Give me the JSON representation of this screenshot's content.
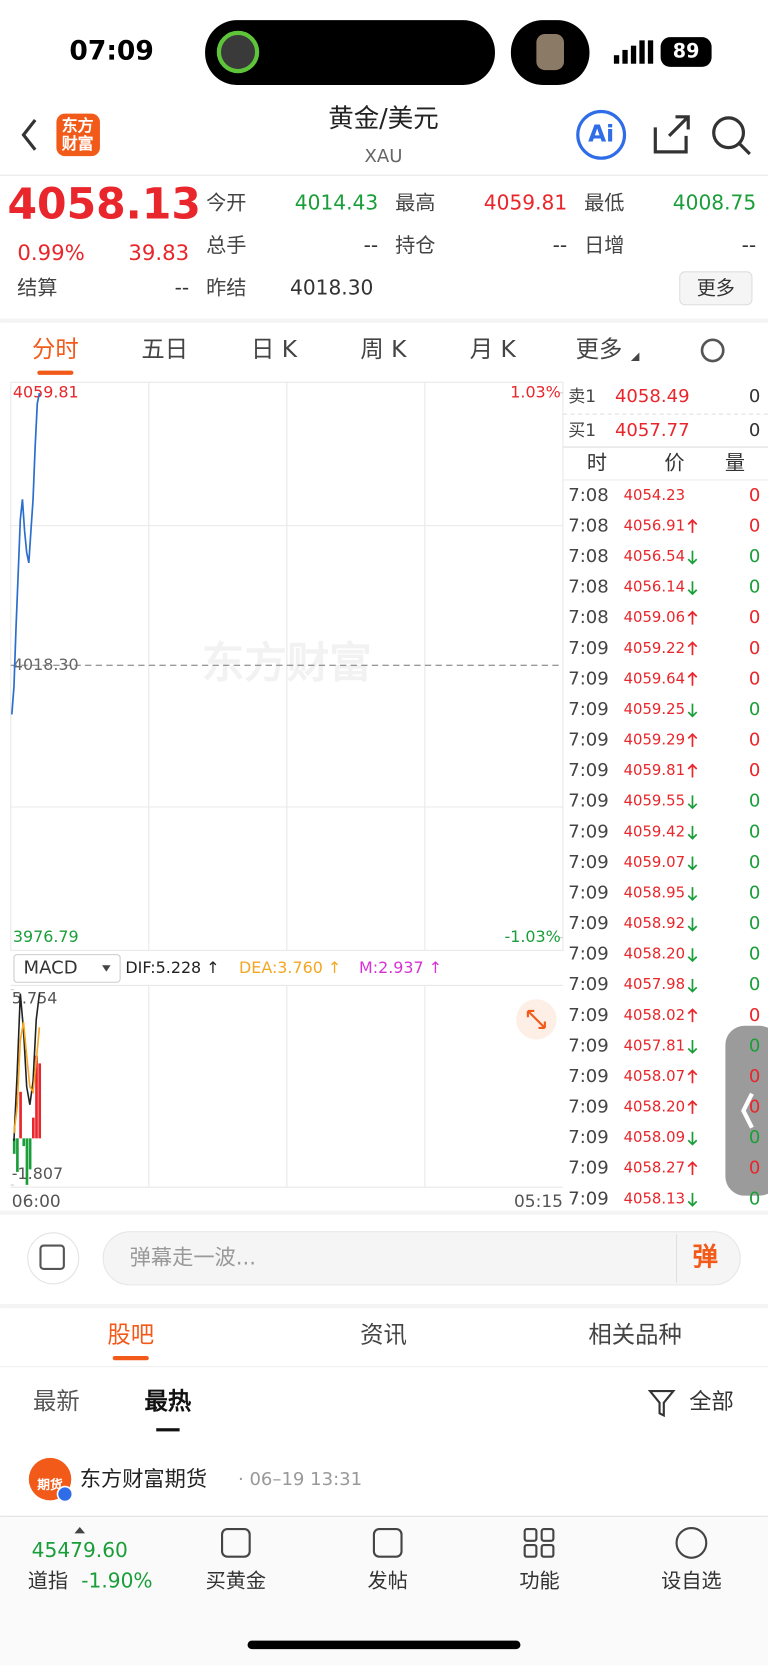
{
  "status": {
    "time": "07:09",
    "battery": "89"
  },
  "header": {
    "logo": [
      "东方",
      "财富"
    ],
    "title": "黄金/美元",
    "subtitle": "XAU",
    "ai": "Ai"
  },
  "quote": {
    "price": "4058.13",
    "change_pct": "0.99%",
    "change": "39.83",
    "fields": [
      {
        "label": "今开",
        "value": "4014.43",
        "color": "#1a9e3a"
      },
      {
        "label": "最高",
        "value": "4059.81",
        "color": "#e8262b"
      },
      {
        "label": "最低",
        "value": "4008.75",
        "color": "#1a9e3a"
      },
      {
        "label": "总手",
        "value": "--",
        "color": "#333333"
      },
      {
        "label": "持仓",
        "value": "--",
        "color": "#333333"
      },
      {
        "label": "日增",
        "value": "--",
        "color": "#333333"
      },
      {
        "label": "结算",
        "value": "--",
        "color": "#333333"
      },
      {
        "label": "昨结",
        "value": "4018.30",
        "color": "#333333"
      }
    ],
    "more": "更多"
  },
  "tabs": {
    "items": [
      "分时",
      "五日",
      "日 K",
      "周 K",
      "月 K",
      "更多"
    ],
    "active": 0
  },
  "chart_data": [
    {
      "type": "line",
      "watermark": "东方财富",
      "color": "#2b6fce",
      "values": [
        4010.8,
        4015.0,
        4024.2,
        4032.3,
        4040.5,
        4043.6,
        4038.8,
        4035.5,
        4033.9,
        4038.8,
        4043.6,
        4051.7,
        4058.2,
        4059.8
      ],
      "ylim": [
        3976.79,
        4059.81
      ],
      "yticks": [
        3976.79,
        {
          "value": 4018.3,
          "label": "4018.30"
        },
        4059.81
      ],
      "y2lim": [
        -1.03,
        1.03
      ],
      "y2ticks": [
        {
          "value": -1.03,
          "label": "-1.03%"
        },
        {
          "value": 1.03,
          "label": "1.03%"
        }
      ],
      "x_labels": [
        "06:00",
        "05:15"
      ]
    },
    {
      "type": "macd",
      "selector": "MACD",
      "ylim": [
        -1.807,
        5.754
      ],
      "yticks": [
        5.754,
        -1.807
      ],
      "series": [
        {
          "name": "DIF:5.228 ↑",
          "color": "#222222",
          "values": [
            -0.1,
            2.5,
            5.6,
            4.2,
            2.0,
            1.3,
            2.2,
            4.6,
            5.6
          ]
        },
        {
          "name": "DEA:3.760 ↑",
          "color": "#f5a623",
          "values": [
            0.2,
            1.2,
            3.8,
            4.5,
            3.2,
            2.0,
            1.8,
            3.0,
            4.3
          ]
        }
      ],
      "bars": {
        "name": "M:2.937 ↑",
        "color": "#d633d6",
        "up_color": "#e8262b",
        "down_color": "#1a9e3a",
        "values": [
          -0.6,
          -1.3,
          1.8,
          -0.3,
          -1.8,
          -1.2,
          0.8,
          3.2,
          2.9
        ]
      }
    }
  ],
  "order_book": {
    "ask": [
      "卖1",
      "4058.49",
      "0"
    ],
    "bid": [
      "买1",
      "4057.77",
      "0"
    ],
    "header": [
      "时",
      "价",
      "量"
    ],
    "trades": [
      {
        "time": "7:08",
        "price": "4054.23",
        "vol": "0",
        "dir": null
      },
      {
        "time": "7:08",
        "price": "4056.91",
        "vol": "0",
        "dir": "up"
      },
      {
        "time": "7:08",
        "price": "4056.54",
        "vol": "0",
        "dir": "down"
      },
      {
        "time": "7:08",
        "price": "4056.14",
        "vol": "0",
        "dir": "down"
      },
      {
        "time": "7:08",
        "price": "4059.06",
        "vol": "0",
        "dir": "up"
      },
      {
        "time": "7:09",
        "price": "4059.22",
        "vol": "0",
        "dir": "up"
      },
      {
        "time": "7:09",
        "price": "4059.64",
        "vol": "0",
        "dir": "up"
      },
      {
        "time": "7:09",
        "price": "4059.25",
        "vol": "0",
        "dir": "down"
      },
      {
        "time": "7:09",
        "price": "4059.29",
        "vol": "0",
        "dir": "up"
      },
      {
        "time": "7:09",
        "price": "4059.81",
        "vol": "0",
        "dir": "up"
      },
      {
        "time": "7:09",
        "price": "4059.55",
        "vol": "0",
        "dir": "down"
      },
      {
        "time": "7:09",
        "price": "4059.42",
        "vol": "0",
        "dir": "down"
      },
      {
        "time": "7:09",
        "price": "4059.07",
        "vol": "0",
        "dir": "down"
      },
      {
        "time": "7:09",
        "price": "4058.95",
        "vol": "0",
        "dir": "down"
      },
      {
        "time": "7:09",
        "price": "4058.92",
        "vol": "0",
        "dir": "down"
      },
      {
        "time": "7:09",
        "price": "4058.20",
        "vol": "0",
        "dir": "down"
      },
      {
        "time": "7:09",
        "price": "4057.98",
        "vol": "0",
        "dir": "down"
      },
      {
        "time": "7:09",
        "price": "4058.02",
        "vol": "0",
        "dir": "up"
      },
      {
        "time": "7:09",
        "price": "4057.81",
        "vol": "0",
        "dir": "down"
      },
      {
        "time": "7:09",
        "price": "4058.07",
        "vol": "0",
        "dir": "up"
      },
      {
        "time": "7:09",
        "price": "4058.20",
        "vol": "0",
        "dir": "up"
      },
      {
        "time": "7:09",
        "price": "4058.09",
        "vol": "0",
        "dir": "down"
      },
      {
        "time": "7:09",
        "price": "4058.27",
        "vol": "0",
        "dir": "up"
      },
      {
        "time": "7:09",
        "price": "4058.13",
        "vol": "0",
        "dir": "down"
      }
    ]
  },
  "comment": {
    "placeholder": "弹幕走一波...",
    "button": "弹"
  },
  "sections": {
    "items": [
      "股吧",
      "资讯",
      "相关品种"
    ],
    "active": 0
  },
  "filters": {
    "items": [
      "最新",
      "最热"
    ],
    "active": 1,
    "all": "全部"
  },
  "post": {
    "avatar": "期货",
    "author": "东方财富期货",
    "time": "· 06–19 13:31"
  },
  "bottom_bar": {
    "index_value": "45479.60",
    "index_name": "道指",
    "index_change": "-1.90%",
    "items": [
      "买黄金",
      "发帖",
      "功能",
      "设自选"
    ]
  }
}
